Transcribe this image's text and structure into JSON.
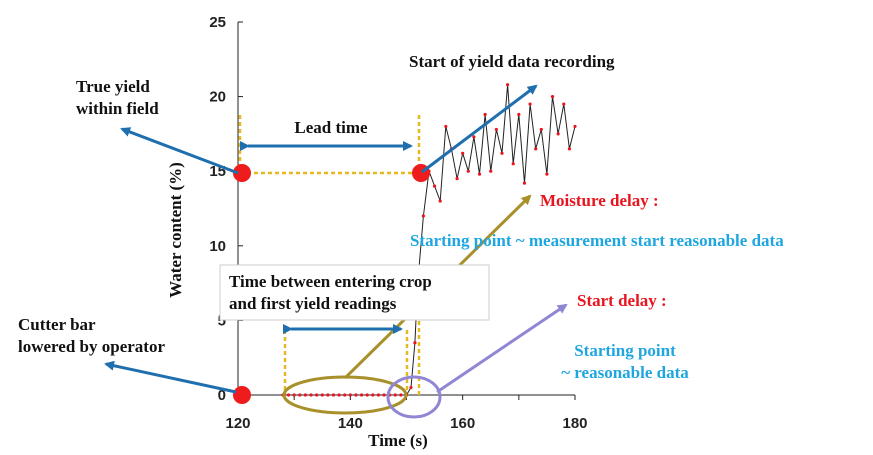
{
  "colors": {
    "series_line": "#222222",
    "series_points": "#e8141e",
    "guide_dashed": "#e8b820",
    "arrow_blue": "#1f6fae",
    "arrow_olive": "#a8902a",
    "arrow_purple": "#8f86d4",
    "ellipse_olive": "#a8902a",
    "circle_purple": "#8f86d4",
    "marker_red": "#ee1c1c",
    "text_red": "#e8141e",
    "text_cyan": "#1fa6e0"
  },
  "chart_data": {
    "type": "line",
    "xlabel": "Time (s)",
    "ylabel": "Water content (%)",
    "xlim": [
      120,
      180
    ],
    "ylim": [
      0,
      25
    ],
    "xticks": [
      120,
      140,
      160,
      180
    ],
    "yticks": [
      0,
      5,
      10,
      15,
      20,
      25
    ],
    "grid": false,
    "series": [
      {
        "x": [
          128,
          129,
          130,
          131,
          132,
          133,
          134,
          135,
          136,
          137,
          138,
          139,
          140,
          141,
          142,
          143,
          144,
          145,
          146,
          147,
          148,
          149,
          150,
          150.8,
          151.5,
          152,
          153,
          154,
          155,
          156,
          157,
          158,
          159,
          160,
          161,
          162,
          163,
          164,
          165,
          166,
          167,
          168,
          169,
          170,
          171,
          172,
          173,
          174,
          175,
          176,
          177,
          178,
          179,
          180
        ],
        "y": [
          0,
          0,
          0,
          0,
          0,
          0,
          0,
          0,
          0,
          0,
          0,
          0,
          0,
          0,
          0,
          0,
          0,
          0,
          0,
          0,
          0,
          0,
          0,
          0.5,
          3.5,
          7.5,
          12,
          15,
          14,
          13,
          18,
          16.5,
          14.5,
          16.2,
          15,
          17.3,
          14.8,
          18.8,
          15,
          17.8,
          16.2,
          20.8,
          15.5,
          18.8,
          14.2,
          19.5,
          16.5,
          17.8,
          14.8,
          20,
          17.5,
          19.5,
          16.5,
          18
        ]
      }
    ],
    "annotations": {
      "true_yield": "True yield\nwithin field",
      "start_recording": "Start of yield data recording",
      "lead_time": "Lead time",
      "moisture_delay_title": "Moisture delay :",
      "moisture_delay_desc": "Starting point ~ measurement start reasonable data",
      "time_between": "Time between entering crop\nand first yield readings",
      "start_delay_title": "Start delay :",
      "start_delay_desc": "Starting point\n~ reasonable data",
      "cutter_bar": "Cutter bar\nlowered by operator"
    }
  }
}
